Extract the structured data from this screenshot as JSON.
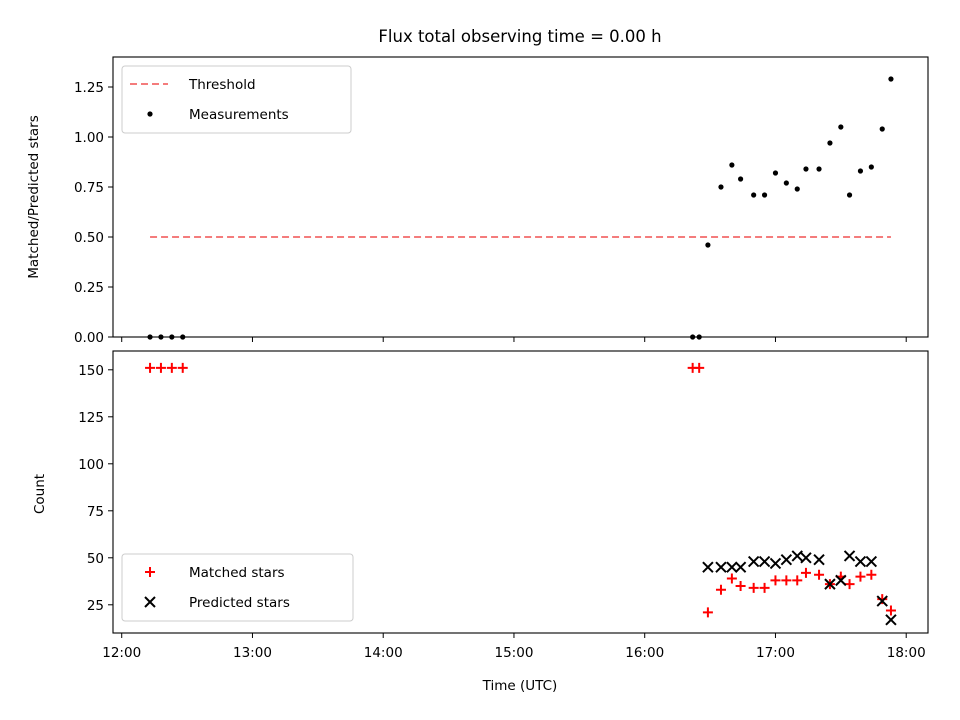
{
  "chart_data": [
    {
      "type": "scatter",
      "title": "Flux total observing time = 0.00 h",
      "xlabel": "",
      "ylabel": "Matched/Predicted stars",
      "xlim": [
        "11:56",
        "18:10"
      ],
      "ylim": [
        0,
        1.4
      ],
      "yticks": [
        "0.00",
        "0.25",
        "0.50",
        "0.75",
        "1.00",
        "1.25"
      ],
      "legend_position": "upper-left",
      "threshold": {
        "name": "Threshold",
        "y": 0.5,
        "x": [
          "12:13",
          "17:53"
        ],
        "color": "#f47c7c",
        "style": "dashed"
      },
      "series": [
        {
          "name": "Measurements",
          "color": "#000000",
          "marker": "dot",
          "points": [
            [
              "12:13",
              0.0
            ],
            [
              "12:18",
              0.0
            ],
            [
              "12:23",
              0.0
            ],
            [
              "12:28",
              0.0
            ],
            [
              "16:22",
              0.0
            ],
            [
              "16:25",
              0.0
            ],
            [
              "16:29",
              0.46
            ],
            [
              "16:35",
              0.75
            ],
            [
              "16:40",
              0.86
            ],
            [
              "16:44",
              0.79
            ],
            [
              "16:50",
              0.71
            ],
            [
              "16:55",
              0.71
            ],
            [
              "17:00",
              0.82
            ],
            [
              "17:05",
              0.77
            ],
            [
              "17:10",
              0.74
            ],
            [
              "17:14",
              0.84
            ],
            [
              "17:20",
              0.84
            ],
            [
              "17:25",
              0.97
            ],
            [
              "17:30",
              1.05
            ],
            [
              "17:34",
              0.71
            ],
            [
              "17:39",
              0.83
            ],
            [
              "17:44",
              0.85
            ],
            [
              "17:49",
              1.04
            ],
            [
              "17:53",
              1.29
            ]
          ]
        }
      ]
    },
    {
      "type": "scatter",
      "title": "",
      "xlabel": "Time (UTC)",
      "ylabel": "Count",
      "xlim": [
        "11:56",
        "18:10"
      ],
      "ylim": [
        10,
        160
      ],
      "xticks": [
        "12:00",
        "13:00",
        "14:00",
        "15:00",
        "16:00",
        "17:00",
        "18:00"
      ],
      "yticks": [
        "25",
        "50",
        "75",
        "100",
        "125",
        "150"
      ],
      "legend_position": "lower-left",
      "series": [
        {
          "name": "Matched stars",
          "color": "#ff0000",
          "marker": "plus",
          "points": [
            [
              "12:13",
              151
            ],
            [
              "12:18",
              151
            ],
            [
              "12:23",
              151
            ],
            [
              "12:28",
              151
            ],
            [
              "16:22",
              151
            ],
            [
              "16:25",
              151
            ],
            [
              "16:29",
              21
            ],
            [
              "16:35",
              33
            ],
            [
              "16:40",
              39
            ],
            [
              "16:44",
              35
            ],
            [
              "16:50",
              34
            ],
            [
              "16:55",
              34
            ],
            [
              "17:00",
              38
            ],
            [
              "17:05",
              38
            ],
            [
              "17:10",
              38
            ],
            [
              "17:14",
              42
            ],
            [
              "17:20",
              41
            ],
            [
              "17:25",
              36
            ],
            [
              "17:30",
              40
            ],
            [
              "17:34",
              36
            ],
            [
              "17:39",
              40
            ],
            [
              "17:44",
              41
            ],
            [
              "17:49",
              28
            ],
            [
              "17:53",
              22
            ]
          ]
        },
        {
          "name": "Predicted stars",
          "color": "#000000",
          "marker": "x",
          "points": [
            [
              "16:29",
              45
            ],
            [
              "16:35",
              45
            ],
            [
              "16:40",
              45
            ],
            [
              "16:44",
              45
            ],
            [
              "16:50",
              48
            ],
            [
              "16:55",
              48
            ],
            [
              "17:00",
              47
            ],
            [
              "17:05",
              49
            ],
            [
              "17:10",
              51
            ],
            [
              "17:14",
              50
            ],
            [
              "17:20",
              49
            ],
            [
              "17:25",
              36
            ],
            [
              "17:30",
              38
            ],
            [
              "17:34",
              51
            ],
            [
              "17:39",
              48
            ],
            [
              "17:44",
              48
            ],
            [
              "17:49",
              27
            ],
            [
              "17:53",
              17
            ]
          ]
        }
      ]
    }
  ]
}
